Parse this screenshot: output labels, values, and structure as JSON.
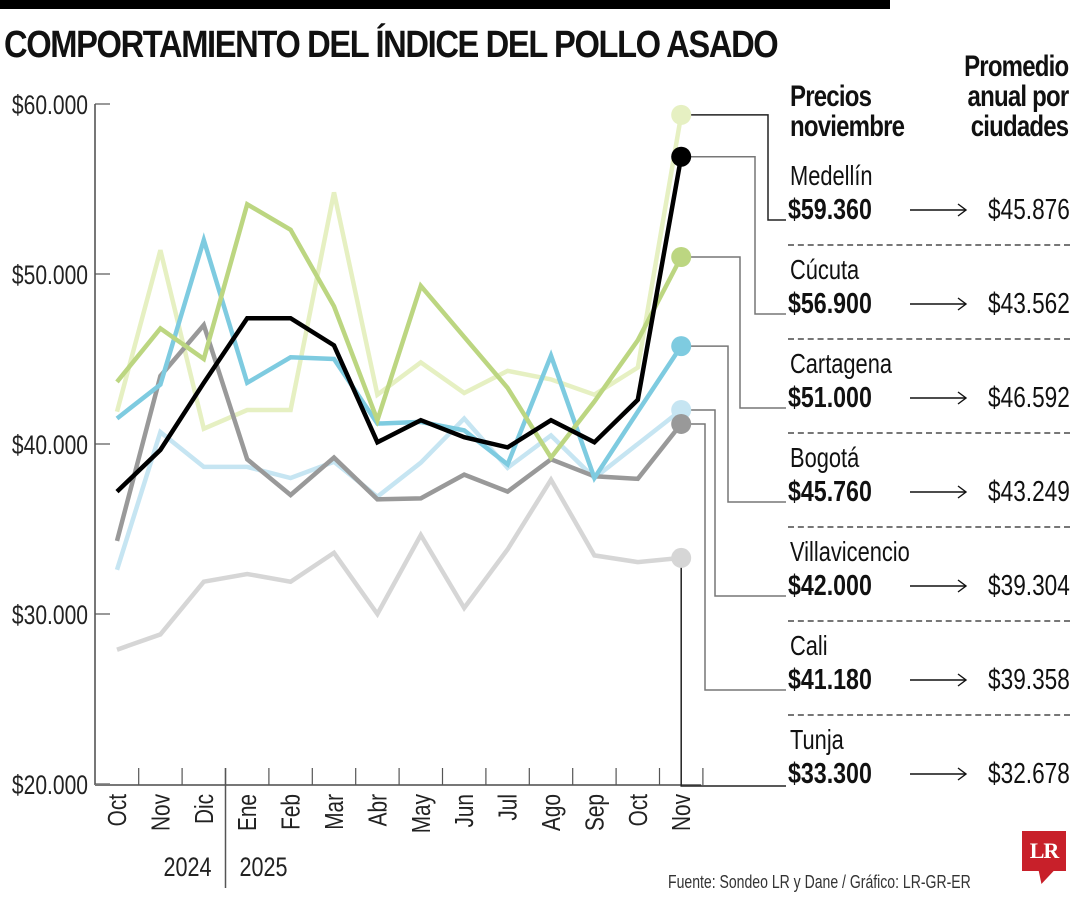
{
  "header": {
    "title": "COMPORTAMIENTO DEL ÍNDICE DEL POLLO ASADO",
    "col_november": [
      "Precios",
      "noviembre"
    ],
    "col_average": [
      "Promedio",
      "anual por",
      "ciudades"
    ]
  },
  "cities": [
    {
      "name": "Medellín",
      "price": "$59.360",
      "average": "$45.876"
    },
    {
      "name": "Cúcuta",
      "price": "$56.900",
      "average": "$43.562"
    },
    {
      "name": "Cartagena",
      "price": "$51.000",
      "average": "$46.592"
    },
    {
      "name": "Bogotá",
      "price": "$45.760",
      "average": "$43.249"
    },
    {
      "name": "Villavicencio",
      "price": "$42.000",
      "average": "$39.304"
    },
    {
      "name": "Cali",
      "price": "$41.180",
      "average": "$39.358"
    },
    {
      "name": "Tunja",
      "price": "$33.300",
      "average": "$32.678"
    }
  ],
  "footer": {
    "source": "Fuente: Sondeo LR y Dane / Gráfico: LR-GR-ER",
    "logo": "LR"
  },
  "colors": {
    "Medellín": "#e6f0c2",
    "Cúcuta": "#000000",
    "Cartagena": "#bcd681",
    "Bogotá": "#7ecbe0",
    "Villavicencio": "#c6e5f2",
    "Cali": "#999999",
    "Tunja": "#d6d6d6",
    "logo": "#c8202a"
  },
  "chart_data": {
    "type": "line",
    "title": "COMPORTAMIENTO DEL ÍNDICE DEL POLLO ASADO",
    "xlabel": "",
    "ylabel": "",
    "x": [
      "Oct",
      "Nov",
      "Dic",
      "Ene",
      "Feb",
      "Mar",
      "Abr",
      "May",
      "Jun",
      "Jul",
      "Ago",
      "Sep",
      "Oct",
      "Nov"
    ],
    "year_groups": [
      {
        "label": "2024",
        "months": [
          "Oct",
          "Nov",
          "Dic"
        ]
      },
      {
        "label": "2025",
        "months": [
          "Ene",
          "Feb",
          "Mar",
          "Abr",
          "May",
          "Jun",
          "Jul",
          "Ago",
          "Sep",
          "Oct",
          "Nov"
        ]
      }
    ],
    "yticks": [
      20000,
      30000,
      40000,
      50000,
      60000
    ],
    "ytick_labels": [
      "$20.000",
      "$30.000",
      "$40.000",
      "$50.000",
      "$60.000"
    ],
    "ylim": [
      20000,
      60000
    ],
    "grid": false,
    "legend_position": "right (direct labels)",
    "series": [
      {
        "name": "Medellín",
        "color": "#e6f0c2",
        "values": [
          41900,
          51400,
          40900,
          42000,
          42000,
          54800,
          42900,
          44800,
          43000,
          44300,
          43800,
          42900,
          44500,
          59360
        ]
      },
      {
        "name": "Cúcuta",
        "color": "#000000",
        "values": [
          37200,
          39650,
          43600,
          47400,
          47400,
          45800,
          40100,
          41400,
          40400,
          39800,
          41400,
          40100,
          42600,
          56900
        ]
      },
      {
        "name": "Cartagena",
        "color": "#bcd681",
        "values": [
          43650,
          46800,
          45000,
          54100,
          52600,
          48100,
          41400,
          49300,
          46300,
          43300,
          39200,
          42500,
          46100,
          51000
        ]
      },
      {
        "name": "Bogotá",
        "color": "#7ecbe0",
        "values": [
          41500,
          43500,
          52000,
          43600,
          45100,
          45000,
          41200,
          41300,
          40800,
          38800,
          45200,
          38000,
          41900,
          45760
        ]
      },
      {
        "name": "Villavicencio",
        "color": "#c6e5f2",
        "values": [
          32600,
          40700,
          38650,
          38650,
          38000,
          38950,
          36900,
          38900,
          41500,
          38600,
          40500,
          38000,
          40000,
          42000
        ]
      },
      {
        "name": "Cali",
        "color": "#999999",
        "values": [
          34300,
          44000,
          47000,
          39100,
          37000,
          39200,
          36750,
          36800,
          38200,
          37200,
          39100,
          38100,
          37950,
          41180
        ]
      },
      {
        "name": "Tunja",
        "color": "#d6d6d6",
        "values": [
          27900,
          28800,
          31900,
          32350,
          31900,
          33600,
          30000,
          34650,
          30350,
          33800,
          37900,
          33450,
          33050,
          33300
        ]
      }
    ]
  }
}
